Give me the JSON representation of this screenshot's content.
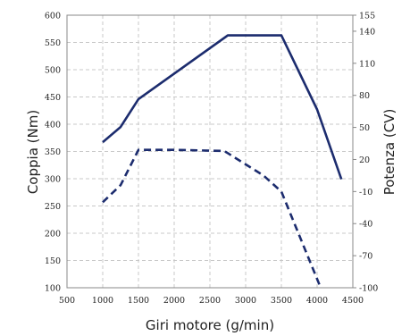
{
  "chart_data": {
    "type": "line",
    "xlabel": "Giri motore (g/min)",
    "ylabel_left": "Coppia (Nm)",
    "ylabel_right": "Potenza (CV)",
    "xlim": [
      500,
      4500
    ],
    "ylim_left": [
      100,
      600
    ],
    "ylim_right": [
      -100,
      155
    ],
    "x_ticks": [
      "500",
      "1000",
      "1500",
      "2000",
      "2500",
      "3000",
      "3500",
      "4000",
      "4500"
    ],
    "y_ticks_left": [
      "100",
      "150",
      "200",
      "250",
      "300",
      "350",
      "400",
      "450",
      "500",
      "550",
      "600"
    ],
    "y_ticks_right": [
      "-100",
      "-70",
      "-40",
      "-10",
      "20",
      "50",
      "80",
      "110",
      "140",
      "155"
    ],
    "grid": true,
    "color": "#1c2c6e",
    "series": [
      {
        "axis": "left",
        "style": "solid",
        "x": [
          1000,
          1250,
          1500,
          2750,
          3500,
          4000,
          4340
        ],
        "y": [
          367,
          395,
          446,
          563,
          563,
          427,
          299
        ]
      },
      {
        "axis": "right",
        "style": "dashed",
        "x": [
          1000,
          1250,
          1500,
          2000,
          2700,
          3250,
          3500,
          4050
        ],
        "y": [
          -20,
          -4,
          29,
          29,
          28,
          5,
          -10,
          -100
        ]
      }
    ]
  }
}
